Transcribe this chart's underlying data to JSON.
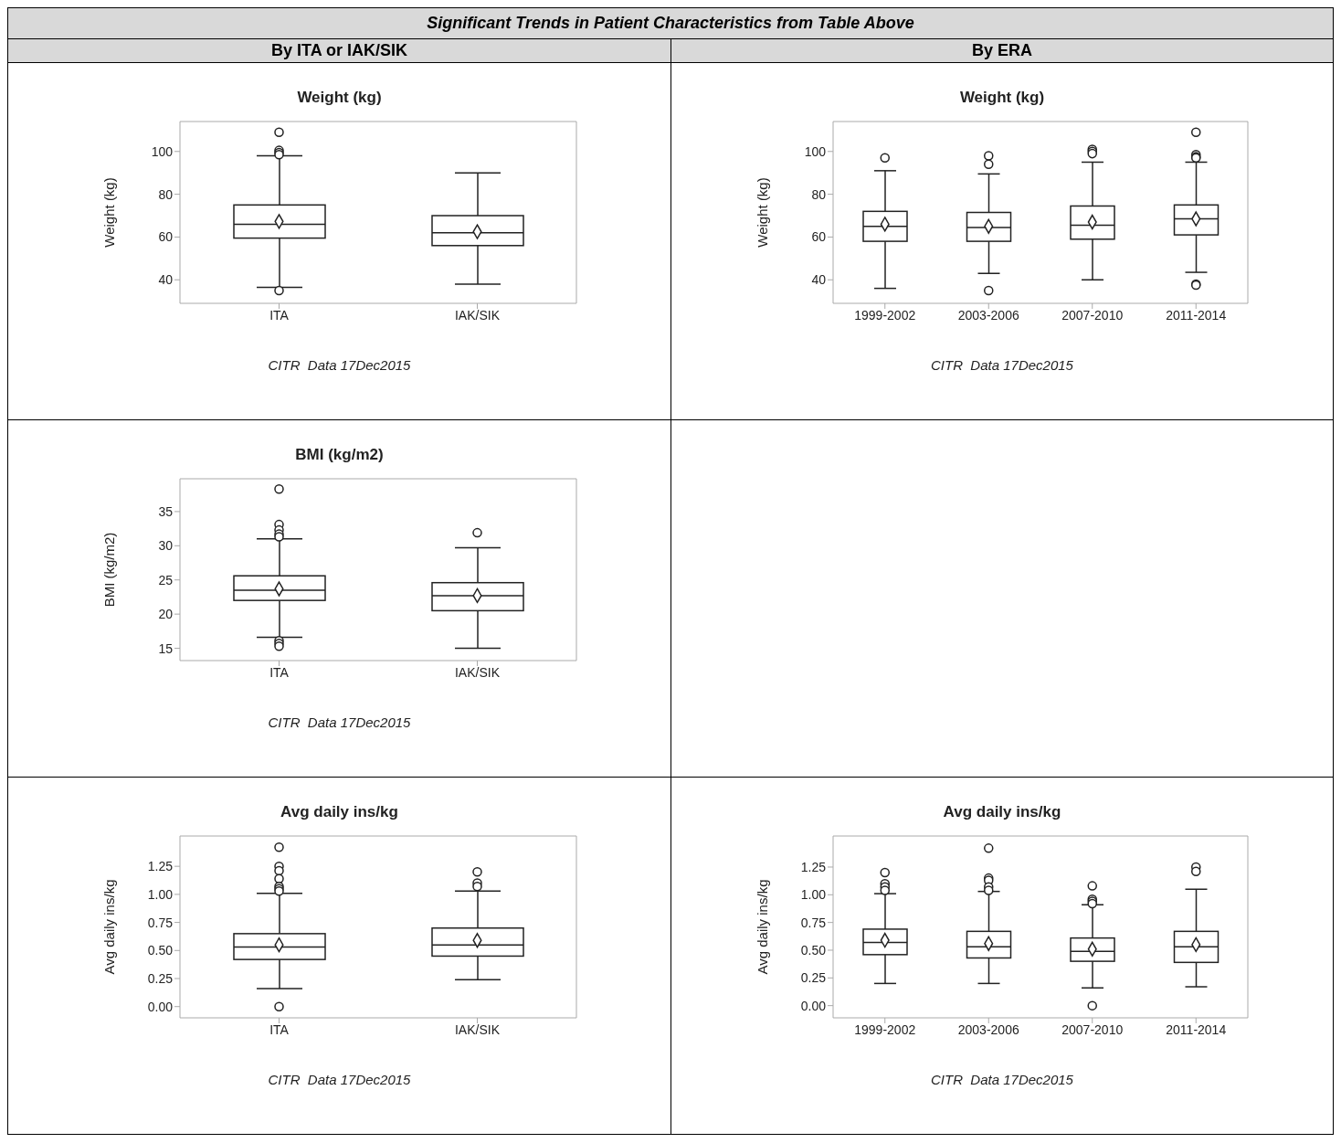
{
  "chart_data": [
    {
      "type": "other",
      "title": "Significant Trends in Patient Characteristics from Table Above",
      "annotations": [
        "By ITA or IAK/SIK",
        "By ERA"
      ]
    },
    {
      "type": "box",
      "title": "Weight (kg)",
      "ylabel": "Weight (kg)",
      "categories": [
        "ITA",
        "IAK/SIK"
      ],
      "ylim": [
        29,
        114
      ],
      "yticks": [
        40,
        60,
        80,
        100
      ],
      "boxes": [
        {
          "low": 36.5,
          "q1": 59.5,
          "median": 66,
          "q3": 75,
          "high": 98,
          "mean": 67.3,
          "outliers": [
            109,
            100.5,
            99.5,
            98.5,
            35
          ]
        },
        {
          "low": 38,
          "q1": 56,
          "median": 62,
          "q3": 70,
          "high": 90,
          "mean": 62.5
        }
      ],
      "annotations": [
        "CITR  Data 17Dec2015"
      ]
    },
    {
      "type": "box",
      "title": "Weight (kg)",
      "ylabel": "Weight (kg)",
      "categories": [
        "1999-2002",
        "2003-2006",
        "2007-2010",
        "2011-2014"
      ],
      "ylim": [
        29,
        114
      ],
      "yticks": [
        40,
        60,
        80,
        100
      ],
      "boxes": [
        {
          "low": 36,
          "q1": 58,
          "median": 65,
          "q3": 72,
          "high": 91,
          "mean": 66,
          "outliers": [
            97
          ]
        },
        {
          "low": 43,
          "q1": 58,
          "median": 64.5,
          "q3": 71.5,
          "high": 89.5,
          "mean": 65,
          "outliers": [
            98,
            94,
            35
          ]
        },
        {
          "low": 40,
          "q1": 59,
          "median": 65.5,
          "q3": 74.5,
          "high": 95,
          "mean": 67,
          "outliers": [
            101,
            100,
            99
          ]
        },
        {
          "low": 43.5,
          "q1": 61,
          "median": 68.5,
          "q3": 75,
          "high": 95,
          "mean": 68.5,
          "outliers": [
            109,
            98.5,
            97.5,
            97,
            38,
            37.5
          ]
        }
      ],
      "annotations": [
        "CITR  Data 17Dec2015"
      ]
    },
    {
      "type": "box",
      "title": "BMI (kg/m2)",
      "ylabel": "BMI (kg/m2)",
      "categories": [
        "ITA",
        "IAK/SIK"
      ],
      "ylim": [
        13.2,
        39.8
      ],
      "yticks": [
        15,
        20,
        25,
        30,
        35
      ],
      "boxes": [
        {
          "low": 16.6,
          "q1": 22,
          "median": 23.5,
          "q3": 25.6,
          "high": 31,
          "mean": 23.7,
          "outliers": [
            38.3,
            33.1,
            32.3,
            31.7,
            31.3,
            16.1,
            15.7,
            15.3
          ]
        },
        {
          "low": 15,
          "q1": 20.5,
          "median": 22.7,
          "q3": 24.6,
          "high": 29.7,
          "mean": 22.7,
          "outliers": [
            31.9
          ]
        }
      ],
      "annotations": [
        "CITR  Data 17Dec2015"
      ]
    },
    {
      "type": "box",
      "title": "Avg daily ins/kg",
      "ylabel": "Avg daily ins/kg",
      "categories": [
        "ITA",
        "IAK/SIK"
      ],
      "ylim": [
        -0.1,
        1.52
      ],
      "yticks": [
        {
          "value": 0,
          "label": "0.00"
        },
        {
          "value": 0.25,
          "label": "0.25"
        },
        {
          "value": 0.5,
          "label": "0.50"
        },
        {
          "value": 0.75,
          "label": "0.75"
        },
        {
          "value": 1,
          "label": "1.00"
        },
        {
          "value": 1.25,
          "label": "1.25"
        }
      ],
      "boxes": [
        {
          "low": 0.16,
          "q1": 0.42,
          "median": 0.53,
          "q3": 0.65,
          "high": 1.01,
          "mean": 0.55,
          "outliers": [
            1.42,
            1.25,
            1.21,
            1.14,
            1.07,
            1.05,
            1.03,
            0
          ]
        },
        {
          "low": 0.24,
          "q1": 0.45,
          "median": 0.55,
          "q3": 0.7,
          "high": 1.03,
          "mean": 0.59,
          "outliers": [
            1.2,
            1.1,
            1.07
          ]
        }
      ],
      "annotations": [
        "CITR  Data 17Dec2015"
      ]
    },
    {
      "type": "box",
      "title": "Avg daily ins/kg",
      "ylabel": "Avg daily ins/kg",
      "categories": [
        "1999-2002",
        "2003-2006",
        "2007-2010",
        "2011-2014"
      ],
      "ylim": [
        -0.11,
        1.53
      ],
      "yticks": [
        {
          "value": 0,
          "label": "0.00"
        },
        {
          "value": 0.25,
          "label": "0.25"
        },
        {
          "value": 0.5,
          "label": "0.50"
        },
        {
          "value": 0.75,
          "label": "0.75"
        },
        {
          "value": 1,
          "label": "1.00"
        },
        {
          "value": 1.25,
          "label": "1.25"
        }
      ],
      "boxes": [
        {
          "low": 0.2,
          "q1": 0.46,
          "median": 0.57,
          "q3": 0.69,
          "high": 1.01,
          "mean": 0.59,
          "outliers": [
            1.2,
            1.1,
            1.07,
            1.04
          ]
        },
        {
          "low": 0.2,
          "q1": 0.43,
          "median": 0.53,
          "q3": 0.67,
          "high": 1.03,
          "mean": 0.56,
          "outliers": [
            1.42,
            1.15,
            1.13,
            1.07,
            1.04
          ]
        },
        {
          "low": 0.16,
          "q1": 0.4,
          "median": 0.49,
          "q3": 0.61,
          "high": 0.91,
          "mean": 0.51,
          "outliers": [
            1.08,
            0.96,
            0.94,
            0.92,
            0
          ]
        },
        {
          "low": 0.17,
          "q1": 0.39,
          "median": 0.53,
          "q3": 0.67,
          "high": 1.05,
          "mean": 0.55,
          "outliers": [
            1.25,
            1.21
          ]
        }
      ],
      "annotations": [
        "CITR  Data 17Dec2015"
      ]
    }
  ]
}
